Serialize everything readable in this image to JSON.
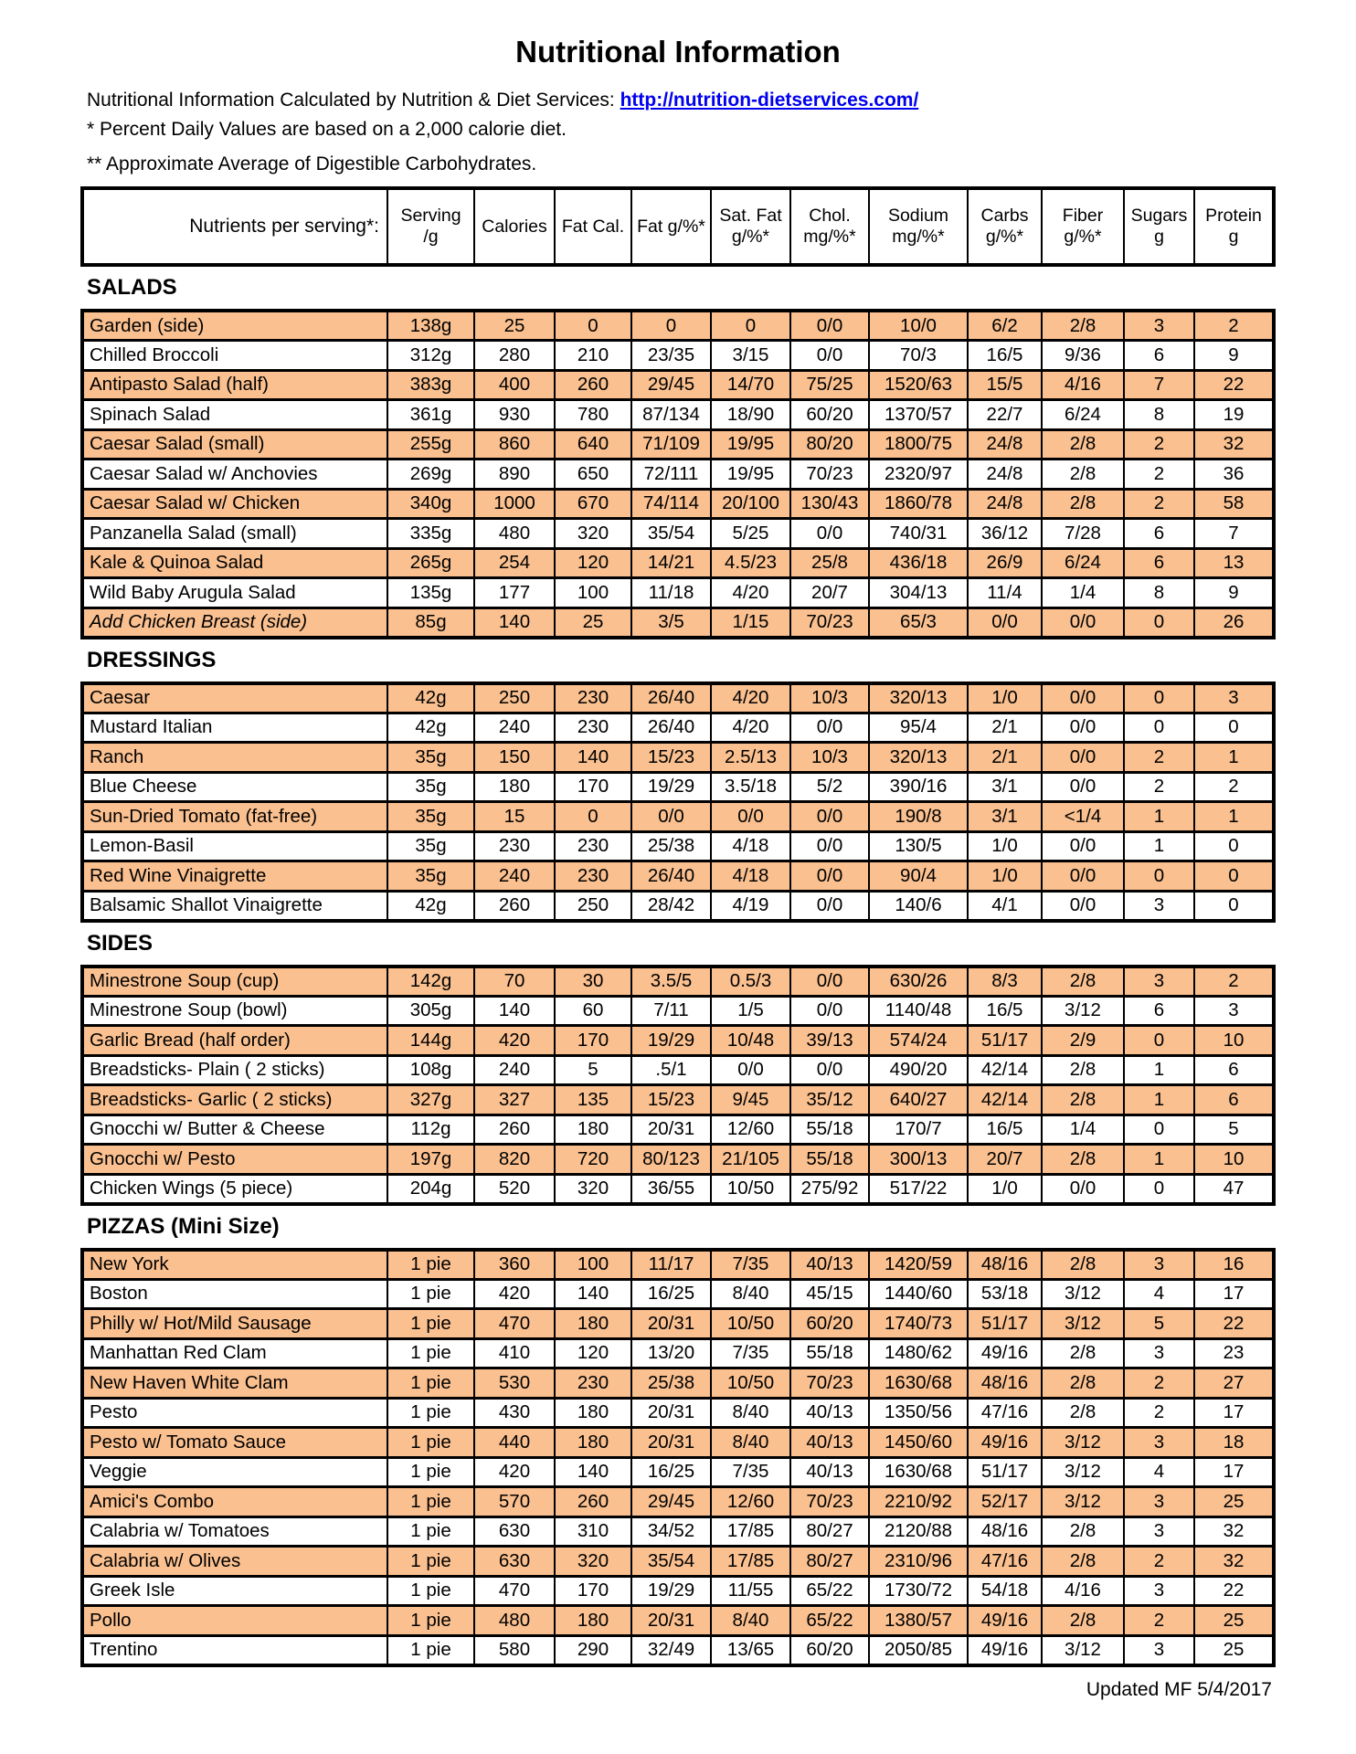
{
  "page": {
    "title": "Nutritional Information",
    "intro_prefix": "Nutritional Information Calculated by Nutrition & Diet Services: ",
    "intro_link": "http://nutrition-dietservices.com/",
    "note1": "* Percent Daily Values are based on a 2,000 calorie diet.",
    "note2": "** Approximate Average of Digestible Carbohydrates.",
    "footer": "Updated MF 5/4/2017"
  },
  "colors": {
    "row_highlight": "#FAC090",
    "link_blue": "#0000EE",
    "border_black": "#000000"
  },
  "table": {
    "header": [
      "Nutrients per serving*:",
      "Serving\n/g",
      "Calories",
      "Fat Cal.",
      "Fat g/%*",
      "Sat. Fat\ng/%*",
      "Chol.\nmg/%*",
      "Sodium\nmg/%*",
      "Carbs\ng/%*",
      "Fiber\ng/%*",
      "Sugars\ng",
      "Protein\ng"
    ],
    "sections": [
      {
        "title": "SALADS",
        "rows": [
          {
            "name": "Garden (side)",
            "values": [
              "138g",
              "25",
              "0",
              "0",
              "0",
              "0/0",
              "10/0",
              "6/2",
              "2/8",
              "3",
              "2"
            ]
          },
          {
            "name": "Chilled Broccoli",
            "values": [
              "312g",
              "280",
              "210",
              "23/35",
              "3/15",
              "0/0",
              "70/3",
              "16/5",
              "9/36",
              "6",
              "9"
            ]
          },
          {
            "name": "Antipasto Salad (half)",
            "values": [
              "383g",
              "400",
              "260",
              "29/45",
              "14/70",
              "75/25",
              "1520/63",
              "15/5",
              "4/16",
              "7",
              "22"
            ]
          },
          {
            "name": "Spinach Salad",
            "values": [
              "361g",
              "930",
              "780",
              "87/134",
              "18/90",
              "60/20",
              "1370/57",
              "22/7",
              "6/24",
              "8",
              "19"
            ]
          },
          {
            "name": "Caesar Salad (small)",
            "values": [
              "255g",
              "860",
              "640",
              "71/109",
              "19/95",
              "80/20",
              "1800/75",
              "24/8",
              "2/8",
              "2",
              "32"
            ]
          },
          {
            "name": "Caesar Salad w/ Anchovies",
            "values": [
              "269g",
              "890",
              "650",
              "72/111",
              "19/95",
              "70/23",
              "2320/97",
              "24/8",
              "2/8",
              "2",
              "36"
            ]
          },
          {
            "name": "Caesar Salad w/ Chicken",
            "values": [
              "340g",
              "1000",
              "670",
              "74/114",
              "20/100",
              "130/43",
              "1860/78",
              "24/8",
              "2/8",
              "2",
              "58"
            ]
          },
          {
            "name": "Panzanella Salad (small)",
            "values": [
              "335g",
              "480",
              "320",
              "35/54",
              "5/25",
              "0/0",
              "740/31",
              "36/12",
              "7/28",
              "6",
              "7"
            ]
          },
          {
            "name": "Kale & Quinoa Salad",
            "values": [
              "265g",
              "254",
              "120",
              "14/21",
              "4.5/23",
              "25/8",
              "436/18",
              "26/9",
              "6/24",
              "6",
              "13"
            ]
          },
          {
            "name": "Wild Baby Arugula Salad",
            "values": [
              "135g",
              "177",
              "100",
              "11/18",
              "4/20",
              "20/7",
              "304/13",
              "11/4",
              "1/4",
              "8",
              "9"
            ]
          },
          {
            "name": "Add Chicken Breast (side)",
            "italic": true,
            "values": [
              "85g",
              "140",
              "25",
              "3/5",
              "1/15",
              "70/23",
              "65/3",
              "0/0",
              "0/0",
              "0",
              "26"
            ]
          }
        ]
      },
      {
        "title": "DRESSINGS",
        "rows": [
          {
            "name": "Caesar",
            "values": [
              "42g",
              "250",
              "230",
              "26/40",
              "4/20",
              "10/3",
              "320/13",
              "1/0",
              "0/0",
              "0",
              "3"
            ]
          },
          {
            "name": "Mustard Italian",
            "values": [
              "42g",
              "240",
              "230",
              "26/40",
              "4/20",
              "0/0",
              "95/4",
              "2/1",
              "0/0",
              "0",
              "0"
            ]
          },
          {
            "name": "Ranch",
            "values": [
              "35g",
              "150",
              "140",
              "15/23",
              "2.5/13",
              "10/3",
              "320/13",
              "2/1",
              "0/0",
              "2",
              "1"
            ]
          },
          {
            "name": "Blue Cheese",
            "values": [
              "35g",
              "180",
              "170",
              "19/29",
              "3.5/18",
              "5/2",
              "390/16",
              "3/1",
              "0/0",
              "2",
              "2"
            ]
          },
          {
            "name": "Sun-Dried Tomato (fat-free)",
            "values": [
              "35g",
              "15",
              "0",
              "0/0",
              "0/0",
              "0/0",
              "190/8",
              "3/1",
              "<1/4",
              "1",
              "1"
            ]
          },
          {
            "name": "Lemon-Basil",
            "values": [
              "35g",
              "230",
              "230",
              "25/38",
              "4/18",
              "0/0",
              "130/5",
              "1/0",
              "0/0",
              "1",
              "0"
            ]
          },
          {
            "name": "Red Wine Vinaigrette",
            "values": [
              "35g",
              "240",
              "230",
              "26/40",
              "4/18",
              "0/0",
              "90/4",
              "1/0",
              "0/0",
              "0",
              "0"
            ]
          },
          {
            "name": "Balsamic Shallot Vinaigrette",
            "values": [
              "42g",
              "260",
              "250",
              "28/42",
              "4/19",
              "0/0",
              "140/6",
              "4/1",
              "0/0",
              "3",
              "0"
            ]
          }
        ]
      },
      {
        "title": "SIDES",
        "rows": [
          {
            "name": "Minestrone Soup (cup)",
            "values": [
              "142g",
              "70",
              "30",
              "3.5/5",
              "0.5/3",
              "0/0",
              "630/26",
              "8/3",
              "2/8",
              "3",
              "2"
            ]
          },
          {
            "name": "Minestrone Soup (bowl)",
            "values": [
              "305g",
              "140",
              "60",
              "7/11",
              "1/5",
              "0/0",
              "1140/48",
              "16/5",
              "3/12",
              "6",
              "3"
            ]
          },
          {
            "name": "Garlic Bread (half order)",
            "values": [
              "144g",
              "420",
              "170",
              "19/29",
              "10/48",
              "39/13",
              "574/24",
              "51/17",
              "2/9",
              "0",
              "10"
            ]
          },
          {
            "name": "Breadsticks- Plain ( 2 sticks)",
            "values": [
              "108g",
              "240",
              "5",
              ".5/1",
              "0/0",
              "0/0",
              "490/20",
              "42/14",
              "2/8",
              "1",
              "6"
            ]
          },
          {
            "name": "Breadsticks- Garlic ( 2 sticks)",
            "values": [
              "327g",
              "327",
              "135",
              "15/23",
              "9/45",
              "35/12",
              "640/27",
              "42/14",
              "2/8",
              "1",
              "6"
            ]
          },
          {
            "name": "Gnocchi w/ Butter & Cheese",
            "values": [
              "112g",
              "260",
              "180",
              "20/31",
              "12/60",
              "55/18",
              "170/7",
              "16/5",
              "1/4",
              "0",
              "5"
            ]
          },
          {
            "name": "Gnocchi w/ Pesto",
            "values": [
              "197g",
              "820",
              "720",
              "80/123",
              "21/105",
              "55/18",
              "300/13",
              "20/7",
              "2/8",
              "1",
              "10"
            ]
          },
          {
            "name": "Chicken Wings (5 piece)",
            "values": [
              "204g",
              "520",
              "320",
              "36/55",
              "10/50",
              "275/92",
              "517/22",
              "1/0",
              "0/0",
              "0",
              "47"
            ]
          }
        ]
      },
      {
        "title": "PIZZAS  (Mini Size)",
        "rows": [
          {
            "name": "New York",
            "values": [
              "1 pie",
              "360",
              "100",
              "11/17",
              "7/35",
              "40/13",
              "1420/59",
              "48/16",
              "2/8",
              "3",
              "16"
            ]
          },
          {
            "name": "Boston",
            "values": [
              "1 pie",
              "420",
              "140",
              "16/25",
              "8/40",
              "45/15",
              "1440/60",
              "53/18",
              "3/12",
              "4",
              "17"
            ]
          },
          {
            "name": "Philly w/ Hot/Mild Sausage",
            "values": [
              "1 pie",
              "470",
              "180",
              "20/31",
              "10/50",
              "60/20",
              "1740/73",
              "51/17",
              "3/12",
              "5",
              "22"
            ]
          },
          {
            "name": "Manhattan Red Clam",
            "values": [
              "1 pie",
              "410",
              "120",
              "13/20",
              "7/35",
              "55/18",
              "1480/62",
              "49/16",
              "2/8",
              "3",
              "23"
            ]
          },
          {
            "name": "New Haven White Clam",
            "values": [
              "1 pie",
              "530",
              "230",
              "25/38",
              "10/50",
              "70/23",
              "1630/68",
              "48/16",
              "2/8",
              "2",
              "27"
            ]
          },
          {
            "name": "Pesto",
            "values": [
              "1 pie",
              "430",
              "180",
              "20/31",
              "8/40",
              "40/13",
              "1350/56",
              "47/16",
              "2/8",
              "2",
              "17"
            ]
          },
          {
            "name": "Pesto w/ Tomato Sauce",
            "values": [
              "1 pie",
              "440",
              "180",
              "20/31",
              "8/40",
              "40/13",
              "1450/60",
              "49/16",
              "3/12",
              "3",
              "18"
            ]
          },
          {
            "name": "Veggie",
            "values": [
              "1 pie",
              "420",
              "140",
              "16/25",
              "7/35",
              "40/13",
              "1630/68",
              "51/17",
              "3/12",
              "4",
              "17"
            ]
          },
          {
            "name": "Amici's Combo",
            "values": [
              "1 pie",
              "570",
              "260",
              "29/45",
              "12/60",
              "70/23",
              "2210/92",
              "52/17",
              "3/12",
              "3",
              "25"
            ]
          },
          {
            "name": "Calabria w/ Tomatoes",
            "values": [
              "1 pie",
              "630",
              "310",
              "34/52",
              "17/85",
              "80/27",
              "2120/88",
              "48/16",
              "2/8",
              "3",
              "32"
            ]
          },
          {
            "name": "Calabria w/ Olives",
            "values": [
              "1 pie",
              "630",
              "320",
              "35/54",
              "17/85",
              "80/27",
              "2310/96",
              "47/16",
              "2/8",
              "2",
              "32"
            ]
          },
          {
            "name": "Greek Isle",
            "values": [
              "1 pie",
              "470",
              "170",
              "19/29",
              "11/55",
              "65/22",
              "1730/72",
              "54/18",
              "4/16",
              "3",
              "22"
            ]
          },
          {
            "name": "Pollo",
            "values": [
              "1 pie",
              "480",
              "180",
              "20/31",
              "8/40",
              "65/22",
              "1380/57",
              "49/16",
              "2/8",
              "2",
              "25"
            ]
          },
          {
            "name": "Trentino",
            "values": [
              "1 pie",
              "580",
              "290",
              "32/49",
              "13/65",
              "60/20",
              "2050/85",
              "49/16",
              "3/12",
              "3",
              "25"
            ]
          }
        ]
      }
    ]
  }
}
